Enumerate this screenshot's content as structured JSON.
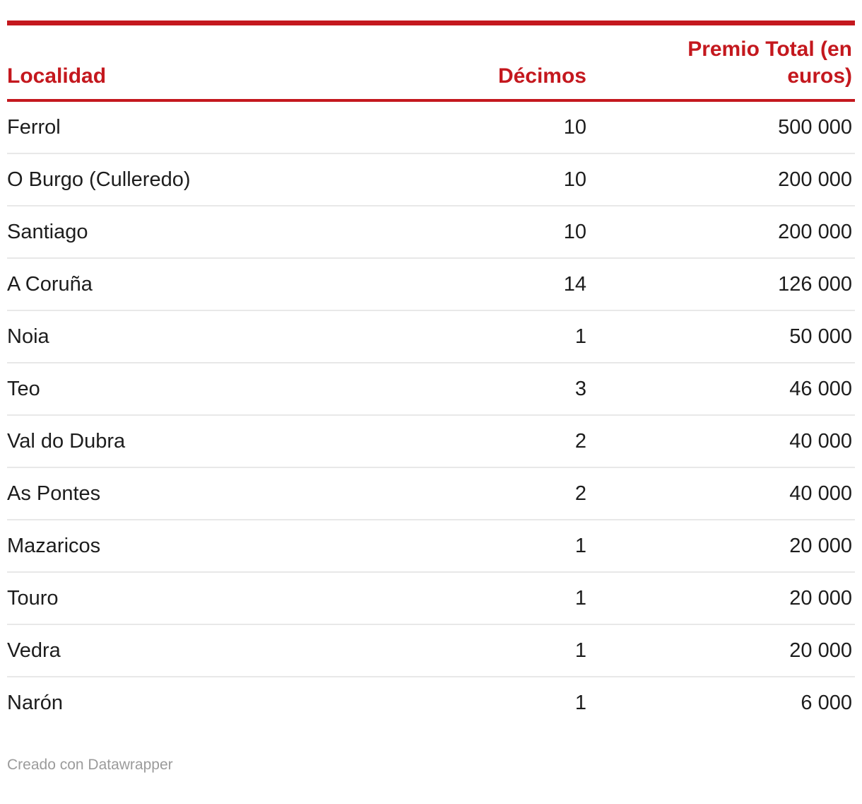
{
  "chart_data": {
    "type": "table",
    "columns": [
      {
        "label": "Localidad",
        "align": "left"
      },
      {
        "label": "Décimos",
        "align": "right"
      },
      {
        "label": "Premio Total (en euros)",
        "align": "right"
      }
    ],
    "rows": [
      {
        "localidad": "Ferrol",
        "decimos": "10",
        "premio": "500 000"
      },
      {
        "localidad": "O Burgo (Culleredo)",
        "decimos": "10",
        "premio": "200 000"
      },
      {
        "localidad": "Santiago",
        "decimos": "10",
        "premio": "200 000"
      },
      {
        "localidad": "A Coruña",
        "decimos": "14",
        "premio": "126 000"
      },
      {
        "localidad": "Noia",
        "decimos": "1",
        "premio": "50 000"
      },
      {
        "localidad": "Teo",
        "decimos": "3",
        "premio": "46 000"
      },
      {
        "localidad": "Val do Dubra",
        "decimos": "2",
        "premio": "40 000"
      },
      {
        "localidad": "As Pontes",
        "decimos": "2",
        "premio": "40 000"
      },
      {
        "localidad": "Mazaricos",
        "decimos": "1",
        "premio": "20 000"
      },
      {
        "localidad": "Touro",
        "decimos": "1",
        "premio": "20 000"
      },
      {
        "localidad": "Vedra",
        "decimos": "1",
        "premio": "20 000"
      },
      {
        "localidad": "Narón",
        "decimos": "1",
        "premio": "6 000"
      }
    ],
    "numeric": {
      "decimos": [
        10,
        10,
        10,
        14,
        1,
        3,
        2,
        2,
        1,
        1,
        1,
        1
      ],
      "premio_euros": [
        500000,
        200000,
        200000,
        126000,
        50000,
        46000,
        40000,
        40000,
        20000,
        20000,
        20000,
        6000
      ]
    },
    "layout": {
      "grid": "horizontal-row-dividers",
      "legend": "none"
    }
  },
  "footer": {
    "credit": "Creado con Datawrapper"
  },
  "colors": {
    "accent_red": "#c4181e",
    "row_divider": "#e8e8e8",
    "body_text": "#1d1d1d",
    "footer_text": "#9b9b9b",
    "background": "#ffffff"
  }
}
